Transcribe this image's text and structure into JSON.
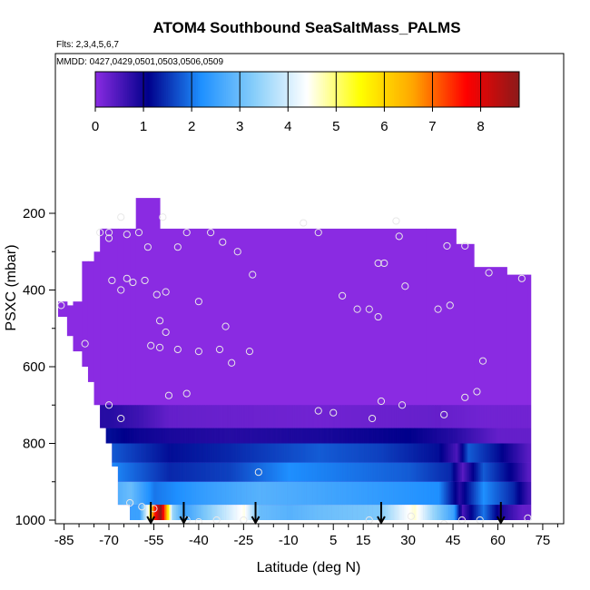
{
  "chart_data": {
    "type": "heatmap",
    "title": "ATOM4 Southbound SeaSaltMass_PALMS",
    "subtitle_flights": "Flts: 2,3,4,5,6,7",
    "subtitle_dates": "MMDD: 0427,0429,0501,0503,0506,0509",
    "xlabel": "Latitude (deg N)",
    "ylabel": "PSXC (mbar)",
    "xlim": [
      -87,
      82
    ],
    "ylim": [
      1000,
      100
    ],
    "x_ticks": [
      -85,
      -70,
      -55,
      -40,
      -25,
      -10,
      5,
      15,
      30,
      45,
      60,
      75
    ],
    "x_tick_labels": [
      "-85",
      "-70",
      "-55",
      "-40",
      "-25",
      "-10",
      "5",
      "15",
      "30",
      "45",
      "60",
      "75"
    ],
    "y_ticks": [
      200,
      400,
      600,
      800,
      1000
    ],
    "y_tick_labels": [
      "200",
      "400",
      "600",
      "800",
      "1000"
    ],
    "colorbar": {
      "range": [
        0,
        8.8
      ],
      "ticks": [
        0,
        1,
        2,
        3,
        4,
        5,
        6,
        7,
        8
      ],
      "tick_labels": [
        "0",
        "1",
        "2",
        "3",
        "4",
        "5",
        "6",
        "7",
        "8"
      ],
      "colors": [
        "#8a2be2",
        "#00008b",
        "#1e90ff",
        "#87cefa",
        "#ffffff",
        "#ffff00",
        "#ffa500",
        "#ff0000",
        "#8b1a1a"
      ]
    },
    "coverage_columns": [
      {
        "lat": [
          -87,
          -84
        ],
        "top": 430,
        "bottom": 470
      },
      {
        "lat": [
          -84,
          -82
        ],
        "top": 440,
        "bottom": 520
      },
      {
        "lat": [
          -82,
          -79
        ],
        "top": 430,
        "bottom": 560
      },
      {
        "lat": [
          -79,
          -77
        ],
        "top": 325,
        "bottom": 600
      },
      {
        "lat": [
          -77,
          -75
        ],
        "top": 325,
        "bottom": 640
      },
      {
        "lat": [
          -75,
          -73
        ],
        "top": 300,
        "bottom": 700
      },
      {
        "lat": [
          -73,
          -71
        ],
        "top": 240,
        "bottom": 760
      },
      {
        "lat": [
          -71,
          -69
        ],
        "top": 240,
        "bottom": 800
      },
      {
        "lat": [
          -69,
          -67
        ],
        "top": 240,
        "bottom": 860
      },
      {
        "lat": [
          -67,
          -65
        ],
        "top": 240,
        "bottom": 960
      },
      {
        "lat": [
          -65,
          -63
        ],
        "top": 240,
        "bottom": 960
      },
      {
        "lat": [
          -63,
          -61
        ],
        "top": 240,
        "bottom": 1000
      },
      {
        "lat": [
          -61,
          -53
        ],
        "top": 160,
        "bottom": 1000
      },
      {
        "lat": [
          -53,
          36
        ],
        "top": 240,
        "bottom": 1000
      },
      {
        "lat": [
          36,
          46
        ],
        "top": 240,
        "bottom": 1000
      },
      {
        "lat": [
          46,
          52
        ],
        "top": 280,
        "bottom": 1000
      },
      {
        "lat": [
          52,
          63
        ],
        "top": 340,
        "bottom": 1000
      },
      {
        "lat": [
          63,
          70
        ],
        "top": 360,
        "bottom": 1000
      },
      {
        "lat": [
          70,
          71
        ],
        "top": 360,
        "bottom": 1000
      }
    ],
    "layers": [
      {
        "p": [
          700,
          760
        ],
        "profile": [
          [
            -70,
            0.8
          ],
          [
            -60,
            0.6
          ],
          [
            -50,
            0.3
          ],
          [
            0,
            0.2
          ],
          [
            40,
            0.3
          ],
          [
            55,
            0.2
          ]
        ]
      },
      {
        "p": [
          760,
          800
        ],
        "profile": [
          [
            -70,
            1.2
          ],
          [
            -60,
            1.0
          ],
          [
            -50,
            0.9
          ],
          [
            -30,
            0.8
          ],
          [
            0,
            0.9
          ],
          [
            30,
            1.1
          ],
          [
            45,
            0.8
          ],
          [
            60,
            0.3
          ]
        ]
      },
      {
        "p": [
          800,
          850
        ],
        "profile": [
          [
            -70,
            1.8
          ],
          [
            -60,
            1.5
          ],
          [
            -50,
            1.2
          ],
          [
            -30,
            1.4
          ],
          [
            0,
            1.8
          ],
          [
            20,
            1.6
          ],
          [
            40,
            1.2
          ],
          [
            46,
            0.5
          ],
          [
            50,
            1.8
          ],
          [
            60,
            1.2
          ],
          [
            70,
            0.4
          ]
        ]
      },
      {
        "p": [
          850,
          900
        ],
        "profile": [
          [
            -70,
            2.2
          ],
          [
            -60,
            1.8
          ],
          [
            -50,
            1.4
          ],
          [
            -30,
            1.6
          ],
          [
            -10,
            2.2
          ],
          [
            10,
            2.0
          ],
          [
            30,
            1.8
          ],
          [
            44,
            1.4
          ],
          [
            48,
            0.4
          ],
          [
            55,
            1.8
          ],
          [
            65,
            1.0
          ],
          [
            70,
            0.4
          ]
        ]
      },
      {
        "p": [
          900,
          960
        ],
        "profile": [
          [
            -70,
            2.6
          ],
          [
            -63,
            3.0
          ],
          [
            -55,
            2.0
          ],
          [
            -40,
            2.4
          ],
          [
            -20,
            2.8
          ],
          [
            0,
            2.6
          ],
          [
            20,
            2.4
          ],
          [
            40,
            2.2
          ],
          [
            47,
            0.8
          ],
          [
            55,
            2.2
          ],
          [
            65,
            1.4
          ],
          [
            70,
            0.6
          ]
        ]
      },
      {
        "p": [
          960,
          1000
        ],
        "profile": [
          [
            -60,
            2.5
          ],
          [
            -57,
            4.5
          ],
          [
            -55,
            7.5
          ],
          [
            -53,
            8.8
          ],
          [
            -51,
            6.5
          ],
          [
            -49,
            3.5
          ],
          [
            -45,
            2.5
          ],
          [
            -35,
            3.5
          ],
          [
            -25,
            4.5
          ],
          [
            -20,
            3.0
          ],
          [
            -10,
            2.8
          ],
          [
            0,
            3.0
          ],
          [
            20,
            3.2
          ],
          [
            28,
            4.2
          ],
          [
            32,
            4.6
          ],
          [
            38,
            3.5
          ],
          [
            45,
            2.5
          ],
          [
            48,
            0.5
          ],
          [
            55,
            2.0
          ],
          [
            60,
            1.0
          ],
          [
            68,
            0.3
          ]
        ]
      }
    ],
    "samples": [
      [
        -86,
        440
      ],
      [
        -73,
        250
      ],
      [
        -70,
        250
      ],
      [
        -70,
        265
      ],
      [
        -66,
        210
      ],
      [
        -64,
        255
      ],
      [
        -60,
        250
      ],
      [
        -57,
        288
      ],
      [
        -52,
        210
      ],
      [
        -47,
        288
      ],
      [
        -44,
        250
      ],
      [
        -36,
        250
      ],
      [
        -32,
        275
      ],
      [
        -27,
        300
      ],
      [
        -5,
        225
      ],
      [
        0,
        250
      ],
      [
        20,
        330
      ],
      [
        22,
        330
      ],
      [
        26,
        220
      ],
      [
        27,
        260
      ],
      [
        43,
        285
      ],
      [
        49,
        285
      ],
      [
        -69,
        375
      ],
      [
        -66,
        400
      ],
      [
        -64,
        370
      ],
      [
        -62,
        380
      ],
      [
        -58,
        375
      ],
      [
        -54,
        412
      ],
      [
        -51,
        405
      ],
      [
        -40,
        430
      ],
      [
        -31,
        495
      ],
      [
        -22,
        360
      ],
      [
        -56,
        545
      ],
      [
        -53,
        550
      ],
      [
        -53,
        480
      ],
      [
        -51,
        510
      ],
      [
        -47,
        555
      ],
      [
        -40,
        560
      ],
      [
        -33,
        555
      ],
      [
        -29,
        590
      ],
      [
        -23,
        560
      ],
      [
        -78,
        540
      ],
      [
        8,
        415
      ],
      [
        13,
        450
      ],
      [
        17,
        450
      ],
      [
        20,
        470
      ],
      [
        29,
        390
      ],
      [
        40,
        450
      ],
      [
        44,
        440
      ],
      [
        57,
        355
      ],
      [
        68,
        370
      ],
      [
        55,
        585
      ],
      [
        -70,
        700
      ],
      [
        -66,
        735
      ],
      [
        -50,
        675
      ],
      [
        -44,
        670
      ],
      [
        0,
        715
      ],
      [
        5,
        720
      ],
      [
        18,
        735
      ],
      [
        21,
        690
      ],
      [
        28,
        700
      ],
      [
        42,
        725
      ],
      [
        49,
        680
      ],
      [
        53,
        665
      ],
      [
        -63,
        955
      ],
      [
        -59,
        965
      ],
      [
        -55,
        970
      ],
      [
        -44,
        1000
      ],
      [
        -40,
        1005
      ],
      [
        -34,
        1000
      ],
      [
        -25,
        1000
      ],
      [
        -20,
        875
      ],
      [
        17,
        1000
      ],
      [
        31,
        990
      ],
      [
        42,
        1010
      ],
      [
        48,
        1000
      ],
      [
        54,
        1000
      ],
      [
        70,
        995
      ]
    ],
    "flight_arrows_lat": [
      -56,
      -45,
      -21,
      21,
      61
    ]
  }
}
